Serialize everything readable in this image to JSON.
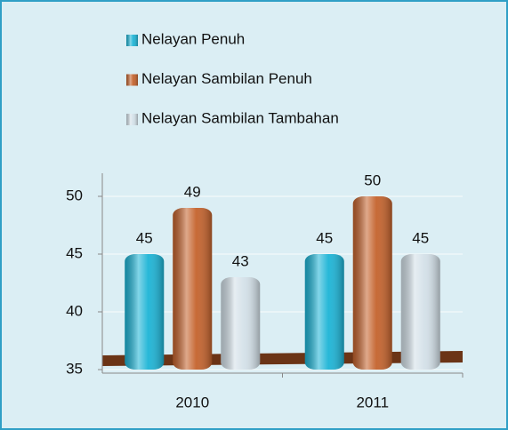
{
  "chart_data": {
    "type": "bar",
    "categories": [
      "2010",
      "2011"
    ],
    "series": [
      {
        "name": "Nelayan Penuh",
        "color": "#1cb4d6",
        "values": [
          45,
          45
        ]
      },
      {
        "name": "Nelayan Sambilan Penuh",
        "color": "#c4622c",
        "values": [
          49,
          50
        ]
      },
      {
        "name": "Nelayan Sambilan Tambahan",
        "color": "#d3e0e8",
        "values": [
          43,
          45
        ]
      }
    ],
    "ylim": [
      35,
      52
    ],
    "yticks": [
      35,
      40,
      45,
      50
    ],
    "grid": true
  }
}
